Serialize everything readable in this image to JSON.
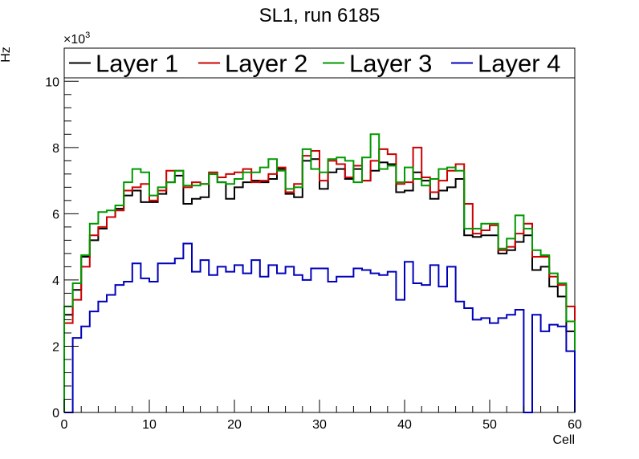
{
  "chart_data": {
    "type": "step",
    "title": "SL1, run 6185",
    "xlabel": "Cell",
    "ylabel": "Hz",
    "y_exponent_label": "×10",
    "y_exponent_value": "3",
    "xlim": [
      0,
      60
    ],
    "ylim": [
      0,
      11
    ],
    "x_ticks": [
      0,
      10,
      20,
      30,
      40,
      50,
      60
    ],
    "y_ticks": [
      0,
      2,
      4,
      6,
      8,
      10
    ],
    "bin_width": 1,
    "legend_position": "top",
    "series": [
      {
        "name": "Layer 1",
        "color": "#000000",
        "values": [
          2.95,
          3.7,
          4.7,
          5.2,
          5.55,
          5.9,
          6.15,
          6.55,
          6.7,
          6.35,
          6.35,
          6.6,
          6.95,
          7.15,
          6.3,
          6.45,
          6.5,
          7.2,
          6.95,
          6.45,
          6.8,
          6.95,
          7.0,
          6.95,
          7.05,
          7.35,
          6.6,
          6.5,
          7.6,
          7.65,
          6.75,
          7.25,
          7.35,
          7.05,
          7.35,
          7.0,
          7.3,
          7.55,
          7.5,
          6.65,
          6.7,
          7.25,
          7.0,
          6.45,
          6.7,
          6.8,
          7.05,
          5.35,
          5.3,
          5.35,
          5.35,
          4.8,
          4.9,
          5.15,
          5.35,
          4.3,
          4.4,
          3.8,
          3.5,
          2.45
        ]
      },
      {
        "name": "Layer 2",
        "color": "#cc0000",
        "values": [
          2.7,
          3.4,
          4.4,
          5.35,
          5.6,
          5.9,
          6.1,
          6.7,
          6.8,
          6.9,
          6.4,
          6.7,
          7.3,
          7.3,
          6.8,
          6.95,
          6.9,
          7.25,
          7.1,
          7.2,
          7.25,
          7.35,
          6.95,
          7.0,
          7.2,
          7.4,
          6.65,
          6.9,
          7.75,
          7.9,
          7.0,
          7.6,
          7.5,
          7.1,
          7.45,
          7.0,
          7.6,
          7.95,
          7.8,
          6.9,
          6.95,
          8.0,
          7.1,
          6.65,
          7.0,
          7.3,
          7.5,
          6.3,
          5.4,
          5.5,
          5.65,
          4.9,
          5.0,
          5.4,
          5.7,
          4.7,
          4.7,
          4.1,
          3.85,
          3.2
        ]
      },
      {
        "name": "Layer 3",
        "color": "#009900",
        "values": [
          3.2,
          3.9,
          4.75,
          5.7,
          6.05,
          6.1,
          6.25,
          6.95,
          7.35,
          7.25,
          6.55,
          6.8,
          6.95,
          7.3,
          6.85,
          6.85,
          6.9,
          7.2,
          6.95,
          6.9,
          7.05,
          7.25,
          7.25,
          7.4,
          7.65,
          7.3,
          6.75,
          6.8,
          7.95,
          7.35,
          7.25,
          7.65,
          7.7,
          7.6,
          6.95,
          7.7,
          8.4,
          7.35,
          7.45,
          6.95,
          7.4,
          7.05,
          6.85,
          7.05,
          7.35,
          7.4,
          7.3,
          5.55,
          5.55,
          5.7,
          5.7,
          4.95,
          5.25,
          5.95,
          5.55,
          4.9,
          4.75,
          4.2,
          3.9,
          2.75
        ]
      },
      {
        "name": "Layer 4",
        "color": "#0000bb",
        "values": [
          0.0,
          2.25,
          2.6,
          3.05,
          3.35,
          3.55,
          3.85,
          3.95,
          4.5,
          4.05,
          3.95,
          4.5,
          4.5,
          4.65,
          5.1,
          4.25,
          4.6,
          4.15,
          4.4,
          4.25,
          4.45,
          4.2,
          4.6,
          4.1,
          4.45,
          4.2,
          4.4,
          4.15,
          4.0,
          4.35,
          4.35,
          3.95,
          4.1,
          4.1,
          4.35,
          4.3,
          4.2,
          4.15,
          4.25,
          3.4,
          4.55,
          3.9,
          3.85,
          4.45,
          3.8,
          4.4,
          3.35,
          3.15,
          2.8,
          2.85,
          2.7,
          2.85,
          2.95,
          3.1,
          0.0,
          2.95,
          2.45,
          2.65,
          2.6,
          1.85
        ]
      }
    ]
  }
}
